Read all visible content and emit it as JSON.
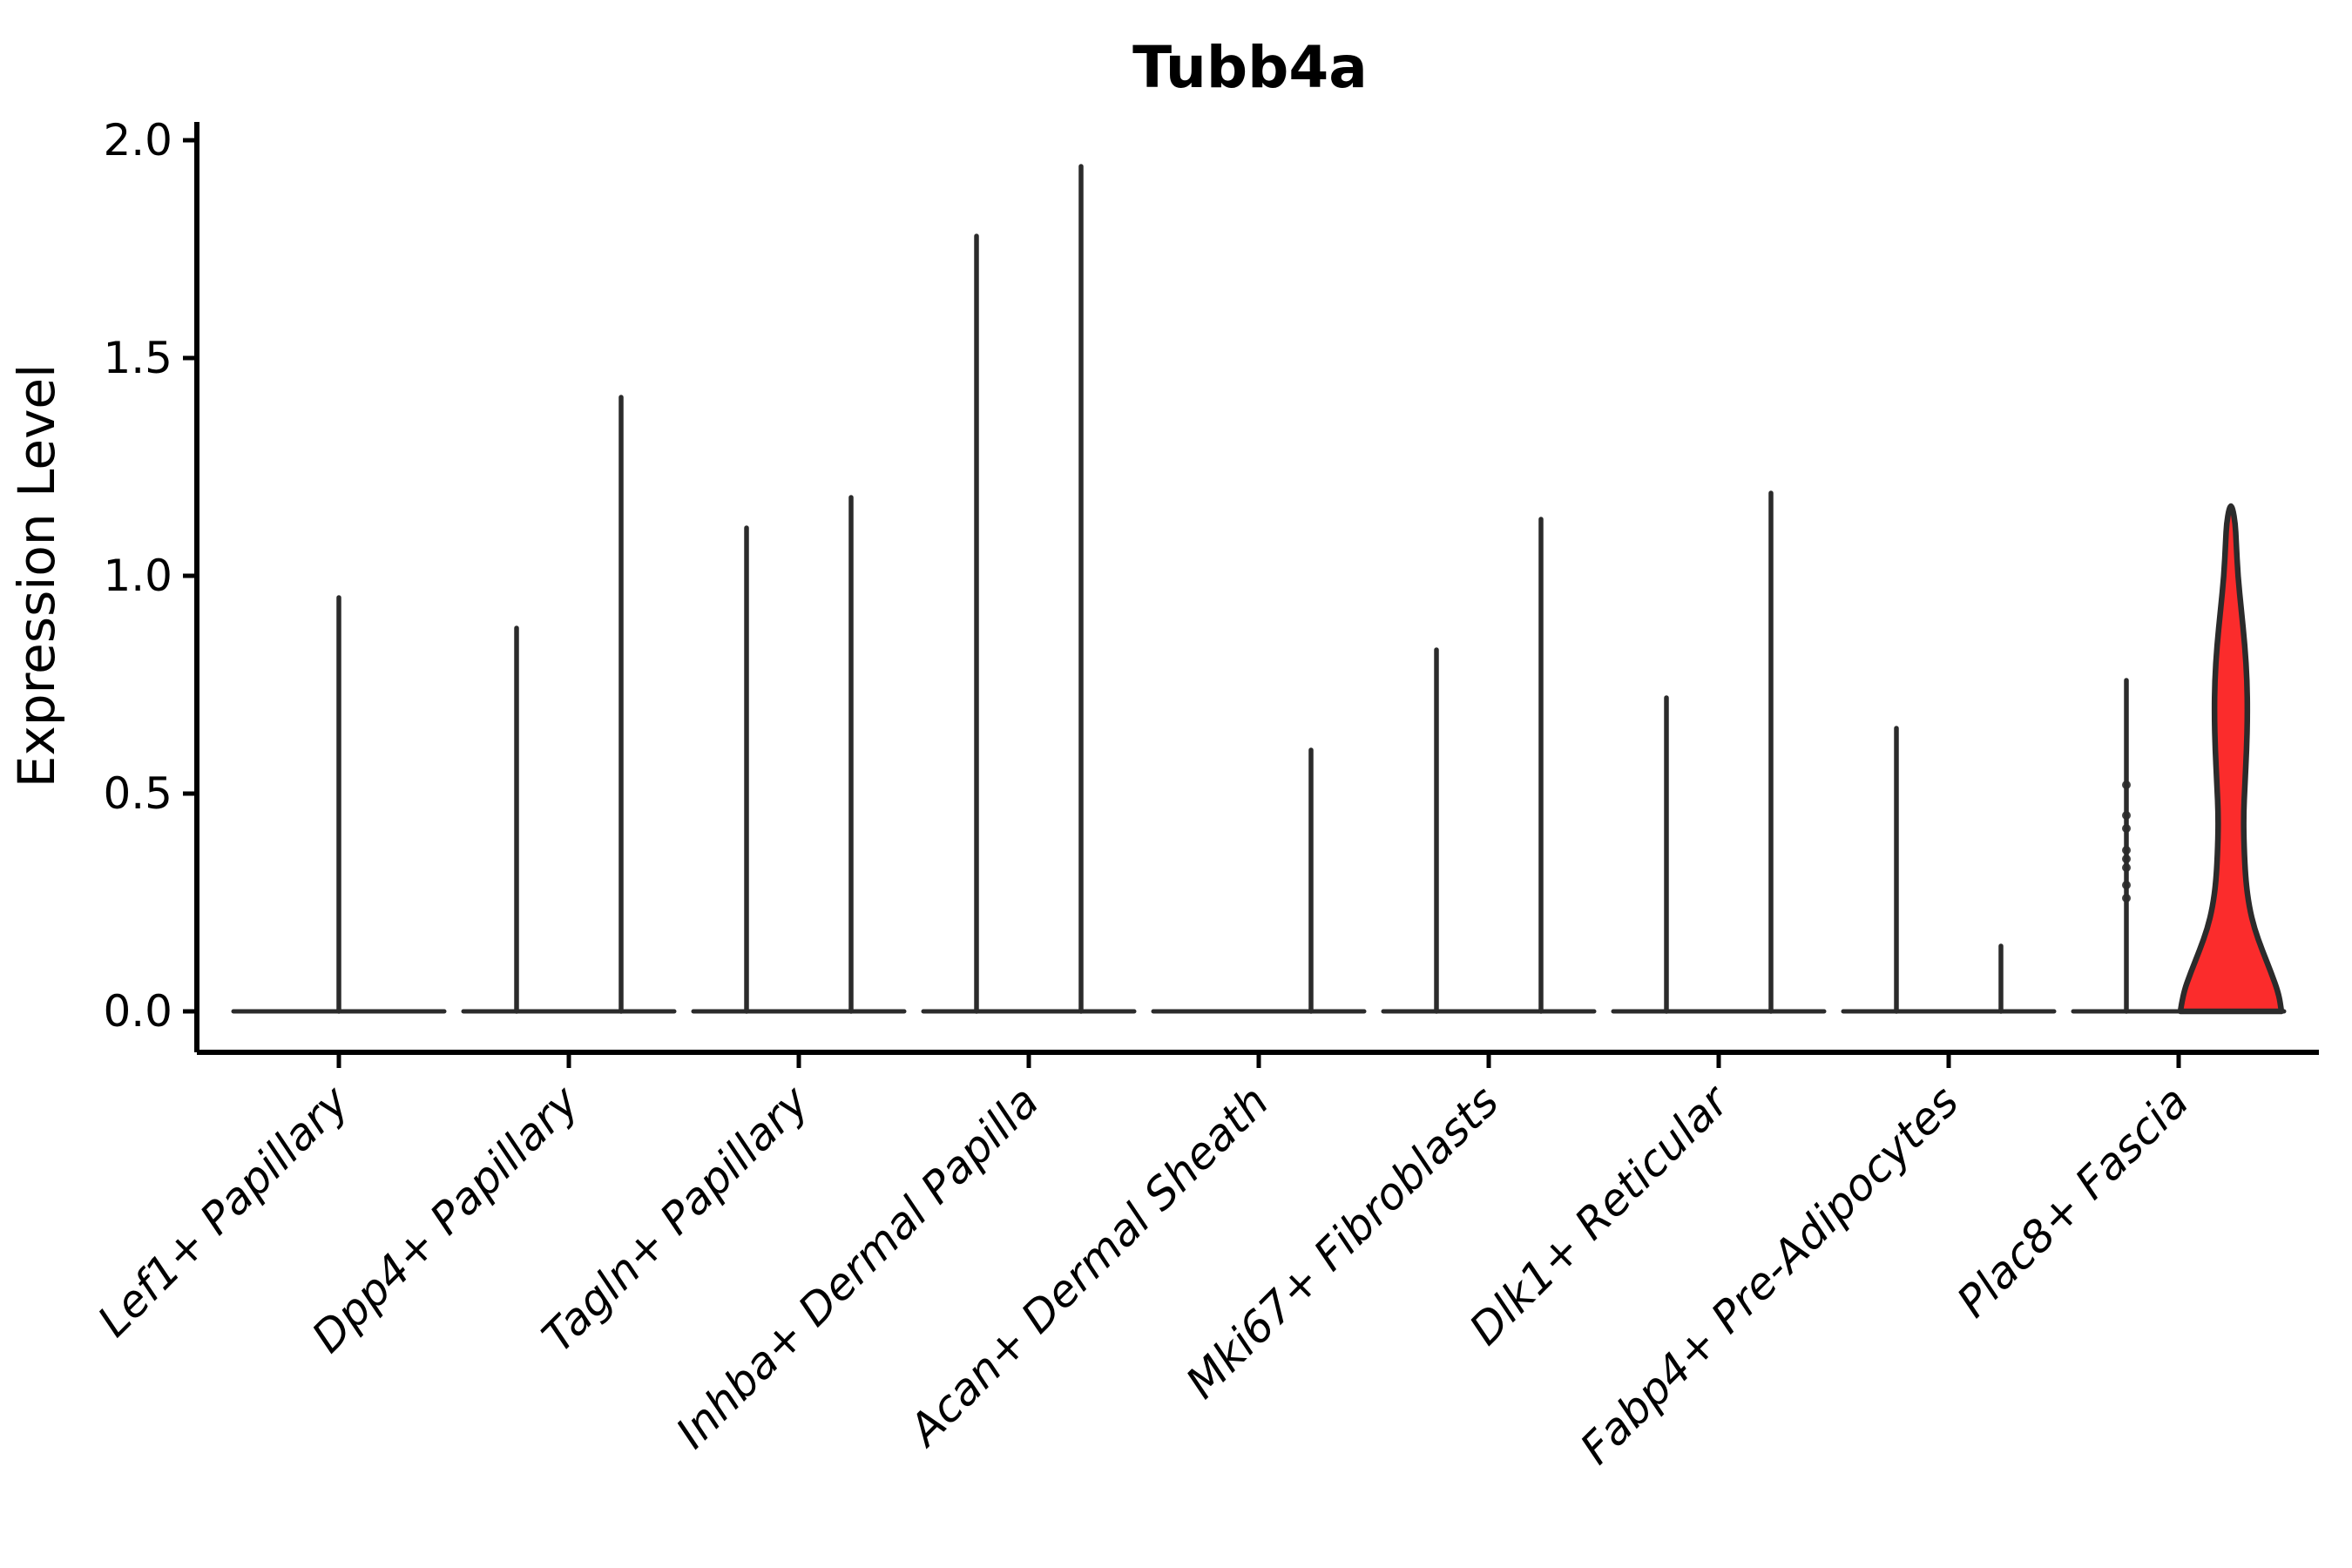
{
  "chart_data": {
    "type": "violin",
    "title": "Tubb4a",
    "ylabel": "Expression Level",
    "xlabel": "",
    "ylim": [
      0,
      2.04
    ],
    "yticks": [
      "0.0",
      "0.5",
      "1.0",
      "1.5",
      "2.0"
    ],
    "ytick_values": [
      0.0,
      0.5,
      1.0,
      1.5,
      2.0
    ],
    "grid": false,
    "legend": "none",
    "colors": {
      "violin_outline": "#2b2b2b",
      "highlight_fill": "#fb2c2c",
      "axis": "#000000",
      "text": "#000000",
      "background": "#ffffff"
    },
    "categories": [
      "Lef1+ Papillary",
      "Dpp4+ Papillary",
      "Tagln+ Papillary",
      "Inhba+ Dermal Papilla",
      "Acan+ Dermal Sheath",
      "Mki67+ Fibroblasts",
      "Dlk1+ Reticular",
      "Fabp4+ Pre-Adipocytes",
      "Plac8+ Fascia"
    ],
    "violins": [
      {
        "category": "Lef1+ Papillary",
        "groups": [
          {
            "offset": "center",
            "style": "spike",
            "max": 0.95
          }
        ]
      },
      {
        "category": "Dpp4+ Papillary",
        "groups": [
          {
            "offset": "left",
            "style": "spike",
            "max": 0.88
          },
          {
            "offset": "right",
            "style": "spike",
            "max": 1.41
          }
        ]
      },
      {
        "category": "Tagln+ Papillary",
        "groups": [
          {
            "offset": "left",
            "style": "spike",
            "max": 1.11
          },
          {
            "offset": "right",
            "style": "spike",
            "max": 1.18
          }
        ]
      },
      {
        "category": "Inhba+ Dermal Papilla",
        "groups": [
          {
            "offset": "left",
            "style": "spike",
            "max": 1.78
          },
          {
            "offset": "right",
            "style": "spike",
            "max": 1.94
          }
        ]
      },
      {
        "category": "Acan+ Dermal Sheath",
        "groups": [
          {
            "offset": "right",
            "style": "spike",
            "max": 0.6
          }
        ]
      },
      {
        "category": "Mki67+ Fibroblasts",
        "groups": [
          {
            "offset": "left",
            "style": "spike",
            "max": 0.83
          },
          {
            "offset": "right",
            "style": "spike",
            "max": 1.13
          }
        ]
      },
      {
        "category": "Dlk1+ Reticular",
        "groups": [
          {
            "offset": "left",
            "style": "spike",
            "max": 0.72
          },
          {
            "offset": "right",
            "style": "spike",
            "max": 1.19
          }
        ]
      },
      {
        "category": "Fabp4+ Pre-Adipocytes",
        "groups": [
          {
            "offset": "left",
            "style": "spike",
            "max": 0.65
          },
          {
            "offset": "right",
            "style": "spike",
            "max": 0.15
          }
        ]
      },
      {
        "category": "Plac8+ Fascia",
        "groups": [
          {
            "offset": "left",
            "style": "spike",
            "max": 0.76,
            "points": [
              0.26,
              0.29,
              0.33,
              0.35,
              0.37,
              0.42,
              0.45,
              0.52
            ]
          },
          {
            "offset": "right",
            "style": "filled",
            "max": 1.16,
            "fill": "#fb2c2c",
            "profile": [
              [
                0.0,
                58
              ],
              [
                0.04,
                55
              ],
              [
                0.09,
                46
              ],
              [
                0.14,
                36
              ],
              [
                0.19,
                27
              ],
              [
                0.24,
                21
              ],
              [
                0.3,
                17
              ],
              [
                0.38,
                15
              ],
              [
                0.45,
                14.5
              ],
              [
                0.52,
                16
              ],
              [
                0.6,
                18
              ],
              [
                0.68,
                19
              ],
              [
                0.76,
                18.5
              ],
              [
                0.84,
                16
              ],
              [
                0.92,
                12
              ],
              [
                1.0,
                8
              ],
              [
                1.08,
                6
              ],
              [
                1.12,
                5
              ],
              [
                1.155,
                2
              ],
              [
                1.16,
                0
              ]
            ]
          }
        ]
      }
    ]
  }
}
